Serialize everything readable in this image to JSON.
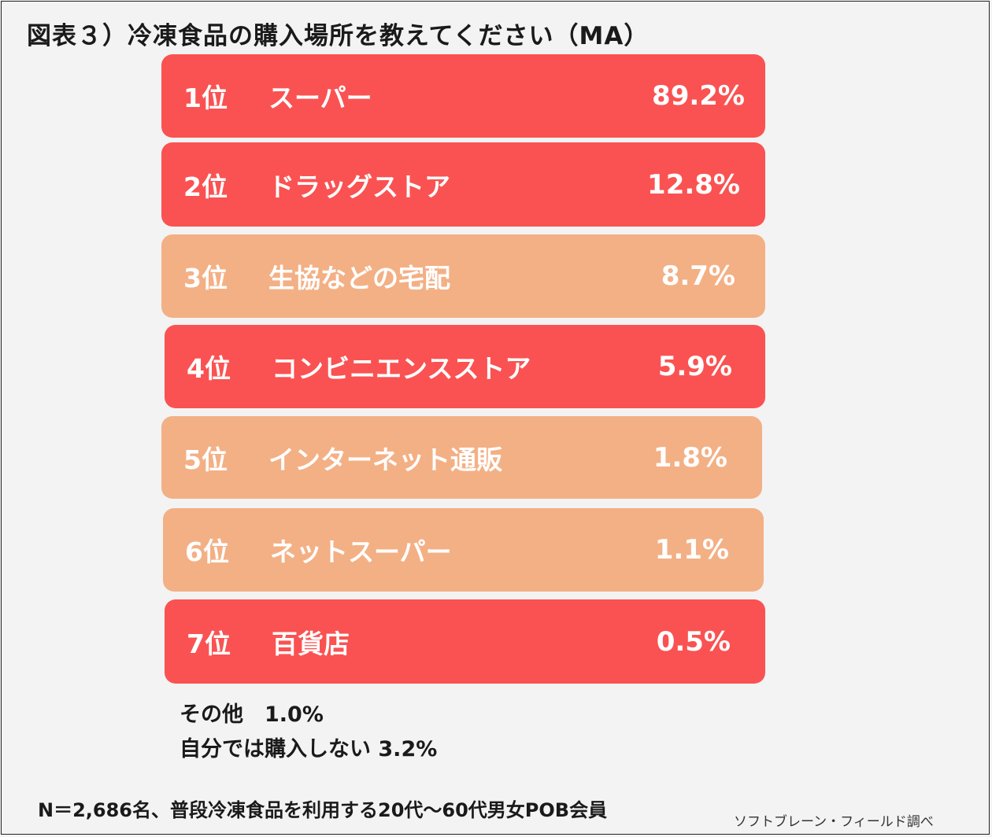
{
  "title": "図表３）冷凍食品の購入場所を教えてください（MA）",
  "colors": {
    "red": "#fa5252",
    "orange": "#f3b085"
  },
  "chart_data": {
    "type": "table",
    "title": "図表３）冷凍食品の購入場所を教えてください（MA）",
    "rows": [
      {
        "rank": "1位",
        "name": "スーパー",
        "value_label": "89.2%",
        "value": 89.2,
        "color": "red"
      },
      {
        "rank": "2位",
        "name": "ドラッグストア",
        "value_label": "12.8%",
        "value": 12.8,
        "color": "red"
      },
      {
        "rank": "3位",
        "name": "生協などの宅配",
        "value_label": "8.7%",
        "value": 8.7,
        "color": "orange"
      },
      {
        "rank": "4位",
        "name": "コンビニエンスストア",
        "value_label": "5.9%",
        "value": 5.9,
        "color": "red"
      },
      {
        "rank": "5位",
        "name": "インターネット通販",
        "value_label": "1.8%",
        "value": 1.8,
        "color": "orange"
      },
      {
        "rank": "6位",
        "name": "ネットスーパー",
        "value_label": "1.1%",
        "value": 1.1,
        "color": "orange"
      },
      {
        "rank": "7位",
        "name": "百貨店",
        "value_label": "0.5%",
        "value": 0.5,
        "color": "red"
      }
    ],
    "notes": [
      "その他　1.0%",
      "自分では購入しない 3.2%"
    ]
  },
  "footer": "N＝2,686名、普段冷凍食品を利用する20代〜60代男女POB会員",
  "source": "ソフトブレーン・フィールド調べ"
}
